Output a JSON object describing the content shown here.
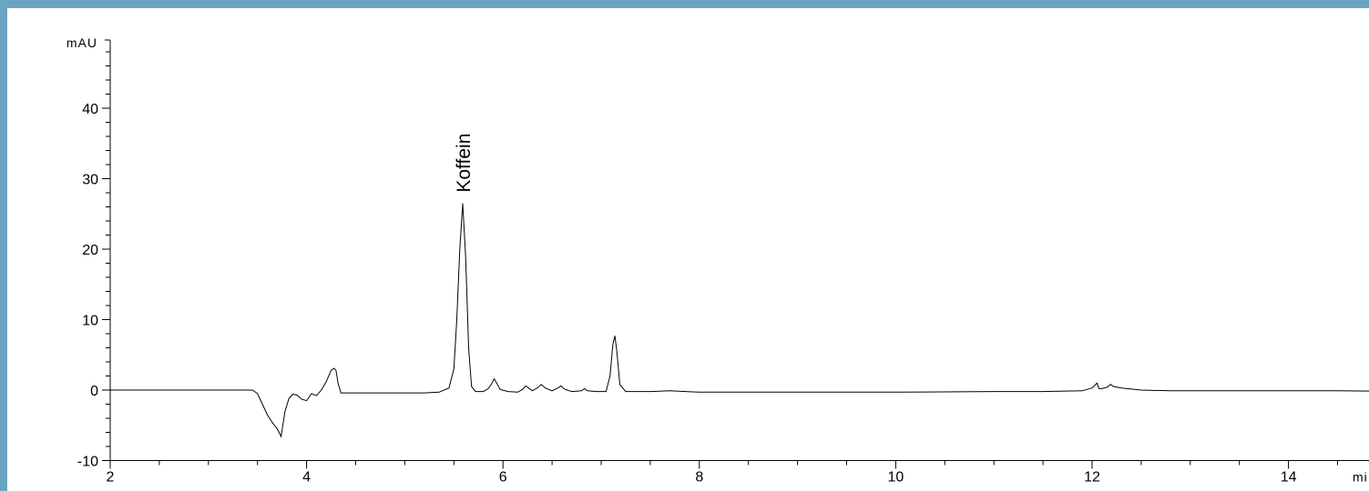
{
  "chart_data": {
    "type": "line",
    "title": "",
    "ylabel": "mAU",
    "xlabel": "mi",
    "xlim": [
      2,
      15.3
    ],
    "ylim": [
      -10,
      50
    ],
    "x_ticks": [
      2,
      4,
      6,
      8,
      10,
      12,
      14
    ],
    "y_ticks": [
      -10,
      0,
      10,
      20,
      30,
      40
    ],
    "grid": false,
    "colors": {
      "line": "#000000",
      "frame": "#6aa6c4"
    },
    "peak_annotations": [
      {
        "label": "Koffein",
        "x": 5.59,
        "y": 26.5
      }
    ],
    "series": [
      {
        "x": [
          2.0,
          2.5,
          3.0,
          3.3,
          3.45,
          3.5,
          3.55,
          3.6,
          3.65,
          3.7,
          3.72,
          3.74,
          3.78,
          3.82,
          3.86,
          3.9,
          3.95,
          4.0,
          4.05,
          4.1,
          4.15,
          4.2,
          4.25,
          4.28,
          4.3,
          4.32,
          4.35,
          4.4,
          4.6,
          4.8,
          5.0,
          5.2,
          5.35,
          5.45,
          5.5,
          5.53,
          5.56,
          5.59,
          5.62,
          5.65,
          5.68,
          5.72,
          5.8,
          5.85,
          5.88,
          5.91,
          5.94,
          5.97,
          6.05,
          6.15,
          6.2,
          6.23,
          6.26,
          6.3,
          6.36,
          6.39,
          6.43,
          6.5,
          6.56,
          6.59,
          6.63,
          6.7,
          6.8,
          6.83,
          6.86,
          6.95,
          7.05,
          7.09,
          7.12,
          7.14,
          7.16,
          7.19,
          7.25,
          7.5,
          7.7,
          8.0,
          9.0,
          10.0,
          11.0,
          11.5,
          11.9,
          12.0,
          12.05,
          12.07,
          12.1,
          12.15,
          12.19,
          12.22,
          12.3,
          12.5,
          12.8,
          13.5,
          14.5,
          15.3
        ],
        "y": [
          0.0,
          0.0,
          0.0,
          0.0,
          0.0,
          -0.5,
          -2.0,
          -3.5,
          -4.6,
          -5.5,
          -6.0,
          -6.6,
          -3.0,
          -1.2,
          -0.6,
          -0.7,
          -1.3,
          -1.5,
          -0.5,
          -0.8,
          0.0,
          1.2,
          2.8,
          3.1,
          2.8,
          1.0,
          -0.4,
          -0.4,
          -0.4,
          -0.4,
          -0.4,
          -0.4,
          -0.3,
          0.3,
          3.0,
          10.0,
          20.0,
          26.5,
          19.0,
          6.0,
          0.5,
          -0.2,
          -0.2,
          0.2,
          0.8,
          1.6,
          0.9,
          0.1,
          -0.2,
          -0.3,
          0.1,
          0.6,
          0.3,
          -0.1,
          0.4,
          0.8,
          0.3,
          -0.1,
          0.3,
          0.6,
          0.1,
          -0.2,
          -0.1,
          0.2,
          -0.1,
          -0.2,
          -0.2,
          2.0,
          6.5,
          7.7,
          5.5,
          0.8,
          -0.2,
          -0.2,
          -0.1,
          -0.3,
          -0.3,
          -0.3,
          -0.2,
          -0.2,
          -0.1,
          0.3,
          1.0,
          0.2,
          0.2,
          0.4,
          0.8,
          0.5,
          0.3,
          0.0,
          -0.1,
          -0.1,
          -0.1,
          -0.2
        ]
      }
    ]
  }
}
